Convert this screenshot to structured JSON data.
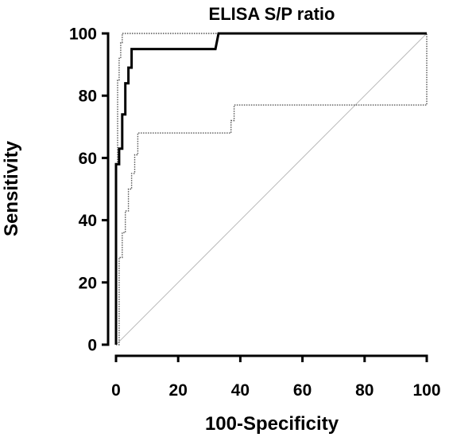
{
  "chart_data": {
    "type": "line",
    "title": "ELISA S/P ratio",
    "xlabel": "100-Specificity",
    "ylabel": "Sensitivity",
    "xlim": [
      0,
      100
    ],
    "ylim": [
      0,
      100
    ],
    "xticks": [
      "0",
      "20",
      "40",
      "60",
      "80",
      "100"
    ],
    "yticks": [
      "0",
      "20",
      "40",
      "60",
      "80",
      "100"
    ],
    "grid": false,
    "legend": "none",
    "series": [
      {
        "style": "thick-solid",
        "color": "#000000",
        "x": [
          0,
          0,
          1,
          1,
          2,
          2,
          3,
          3,
          4,
          4,
          5,
          5,
          32,
          33,
          100
        ],
        "y": [
          0,
          58,
          58,
          63,
          63,
          74,
          74,
          84,
          84,
          89,
          89,
          95,
          95,
          100,
          100
        ]
      },
      {
        "style": "thin-dotted",
        "color": "#555555",
        "x": [
          0,
          0,
          0.5,
          0.5,
          1,
          1,
          1.5,
          1.5,
          2,
          2,
          100
        ],
        "y": [
          0,
          58,
          58,
          85,
          85,
          92,
          92,
          97,
          97,
          100,
          100
        ]
      },
      {
        "style": "thin-dotted",
        "color": "#555555",
        "x": [
          0,
          1,
          1,
          2,
          2,
          3,
          3,
          4,
          4,
          5,
          5,
          6,
          6,
          7,
          7,
          37,
          37,
          38,
          38,
          100,
          100
        ],
        "y": [
          0,
          0,
          28,
          28,
          36,
          36,
          43,
          43,
          50,
          50,
          55,
          55,
          61,
          61,
          68,
          68,
          72,
          72,
          77,
          77,
          100
        ]
      },
      {
        "style": "reference-diagonal",
        "color": "#bbbbbb",
        "x": [
          0,
          100
        ],
        "y": [
          0,
          100
        ]
      }
    ]
  }
}
